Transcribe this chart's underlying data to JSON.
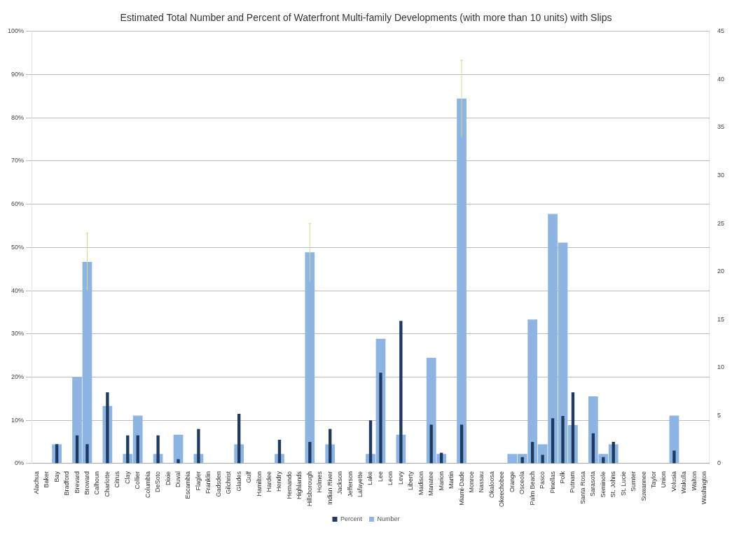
{
  "chart_data": {
    "type": "bar",
    "title": "Estimated Total Number and Percent of Waterfront Multi-family Developments (with more than 10 units) with Slips",
    "categories": [
      "Alachua",
      "Baker",
      "Bay",
      "Bradford",
      "Brevard",
      "Broward",
      "Calhoun",
      "Charlotte",
      "Citrus",
      "Clay",
      "Collier",
      "Columbia",
      "DeSoto",
      "Dixie",
      "Duval",
      "Escambia",
      "Flagler",
      "Franklin",
      "Gadsden",
      "Gilchrist",
      "Glades",
      "Gulf",
      "Hamilton",
      "Hardee",
      "Hendry",
      "Hernando",
      "Highlands",
      "Hillsborough",
      "Holmes",
      "Indian River",
      "Jackson",
      "Jefferson",
      "Lafayette",
      "Lake",
      "Lee",
      "Leon",
      "Levy",
      "Liberty",
      "Madison",
      "Manatee",
      "Marion",
      "Martin",
      "Miami-Dade",
      "Monroe",
      "Nassau",
      "Okaloosa",
      "Okeechobee",
      "Orange",
      "Osceola",
      "Palm Beach",
      "Pasco",
      "Pinellas",
      "Polk",
      "Putnam",
      "Santa Rosa",
      "Sarasota",
      "Seminole",
      "St. Johns",
      "St. Lucie",
      "Sumter",
      "Suwannee",
      "Taylor",
      "Union",
      "Volusia",
      "Wakulla",
      "Walton",
      "Washington"
    ],
    "series": [
      {
        "name": "Number",
        "color": "#8db4e2",
        "axis": "y2",
        "values": [
          0,
          0,
          2,
          0,
          9,
          21,
          0,
          6,
          0,
          1,
          5,
          0,
          1,
          0,
          3,
          0,
          1,
          0,
          0,
          0,
          2,
          0,
          0,
          0,
          1,
          0,
          0,
          22,
          0,
          2,
          0,
          0,
          0,
          1,
          13,
          0,
          3,
          0,
          0,
          11,
          1,
          0,
          38,
          0,
          0,
          0,
          0,
          1,
          1,
          15,
          2,
          26,
          23,
          4,
          0,
          7,
          1,
          2,
          0,
          0,
          0,
          0,
          0,
          5,
          0,
          0,
          0
        ],
        "errors": [
          null,
          null,
          null,
          null,
          null,
          3,
          null,
          null,
          null,
          null,
          null,
          null,
          null,
          null,
          null,
          null,
          null,
          null,
          null,
          null,
          null,
          null,
          null,
          null,
          null,
          null,
          null,
          3,
          null,
          null,
          null,
          null,
          null,
          null,
          null,
          null,
          null,
          null,
          null,
          null,
          null,
          null,
          4,
          null,
          null,
          null,
          null,
          null,
          null,
          null,
          null,
          null,
          null,
          null,
          null,
          null,
          null,
          null,
          null,
          null,
          null,
          null,
          null,
          null,
          null,
          null,
          null
        ]
      },
      {
        "name": "Percent",
        "color": "#1f3a60",
        "values": [
          0,
          0,
          4.5,
          0,
          6.5,
          4.5,
          0,
          16.5,
          0,
          6.5,
          6.5,
          0,
          6.5,
          0,
          1,
          0,
          8,
          0,
          0,
          0,
          11.5,
          0,
          0,
          0,
          5.5,
          0,
          0,
          5,
          0,
          8,
          0,
          0,
          0,
          10,
          21,
          0,
          33,
          0,
          0,
          9,
          2.5,
          0,
          9,
          0,
          0,
          0,
          0,
          0,
          1.5,
          5,
          2,
          10.5,
          11,
          16.5,
          0,
          7,
          1.5,
          5,
          0,
          0,
          0,
          0,
          0,
          3,
          0,
          0,
          0
        ]
      }
    ],
    "ylim": [
      0,
      100
    ],
    "yticks": [
      {
        "value": 0,
        "label": "0%"
      },
      {
        "value": 10,
        "label": "10%"
      },
      {
        "value": 20,
        "label": "20%"
      },
      {
        "value": 30,
        "label": "30%"
      },
      {
        "value": 40,
        "label": "40%"
      },
      {
        "value": 50,
        "label": "50%"
      },
      {
        "value": 60,
        "label": "60%"
      },
      {
        "value": 70,
        "label": "70%"
      },
      {
        "value": 80,
        "label": "80%"
      },
      {
        "value": 90,
        "label": "90%"
      },
      {
        "value": 100,
        "label": "100%"
      }
    ],
    "y2lim": [
      0,
      45
    ],
    "y2ticks": [
      0,
      5,
      10,
      15,
      20,
      25,
      30,
      35,
      40,
      45
    ],
    "grid": "y",
    "legend": "bottom"
  }
}
